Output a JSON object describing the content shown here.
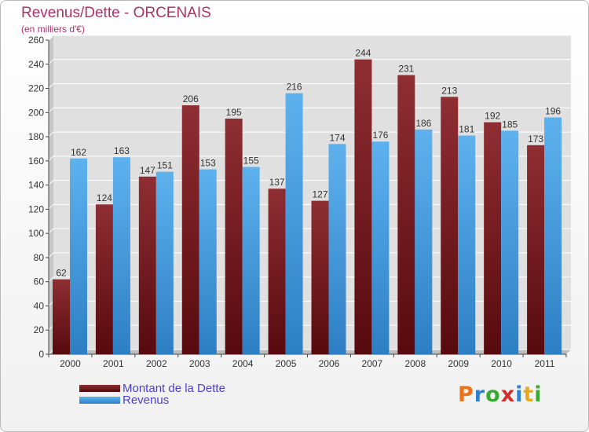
{
  "colors": {
    "dette": "#7a1f24",
    "revenus": "#4da3e3",
    "title": "#b0306a",
    "legend_text": "#4a3fd4",
    "grid": "#ffffff",
    "plot_bg": "#e0e0e0",
    "axis_text": "#333333"
  },
  "chart_data": {
    "type": "bar",
    "title": "Revenus/Dette - ORCENAIS",
    "subtitle": "(en milliers d'€)",
    "xlabel": "",
    "ylabel": "",
    "ylim": [
      0,
      260
    ],
    "yticks": [
      0,
      20,
      40,
      60,
      80,
      100,
      120,
      140,
      160,
      180,
      200,
      220,
      240,
      260
    ],
    "grid": true,
    "categories": [
      "2000",
      "2001",
      "2002",
      "2003",
      "2004",
      "2005",
      "2006",
      "2007",
      "2008",
      "2009",
      "2010",
      "2011"
    ],
    "series": [
      {
        "name": "Montant de la Dette",
        "values": [
          62,
          124,
          147,
          206,
          195,
          137,
          127,
          244,
          231,
          213,
          192,
          173
        ]
      },
      {
        "name": "Revenus",
        "values": [
          162,
          163,
          151,
          153,
          155,
          216,
          174,
          176,
          186,
          181,
          185,
          196
        ]
      }
    ],
    "legend_position": "bottom-left"
  },
  "logo": {
    "letters": [
      "P",
      "r",
      "o",
      "x",
      "i",
      "t",
      "i"
    ],
    "colors": [
      "#e8731c",
      "#2f7fd3",
      "#3aa935",
      "#d32f2f",
      "#2f7fd3",
      "#e8a91c",
      "#3aa935"
    ]
  }
}
